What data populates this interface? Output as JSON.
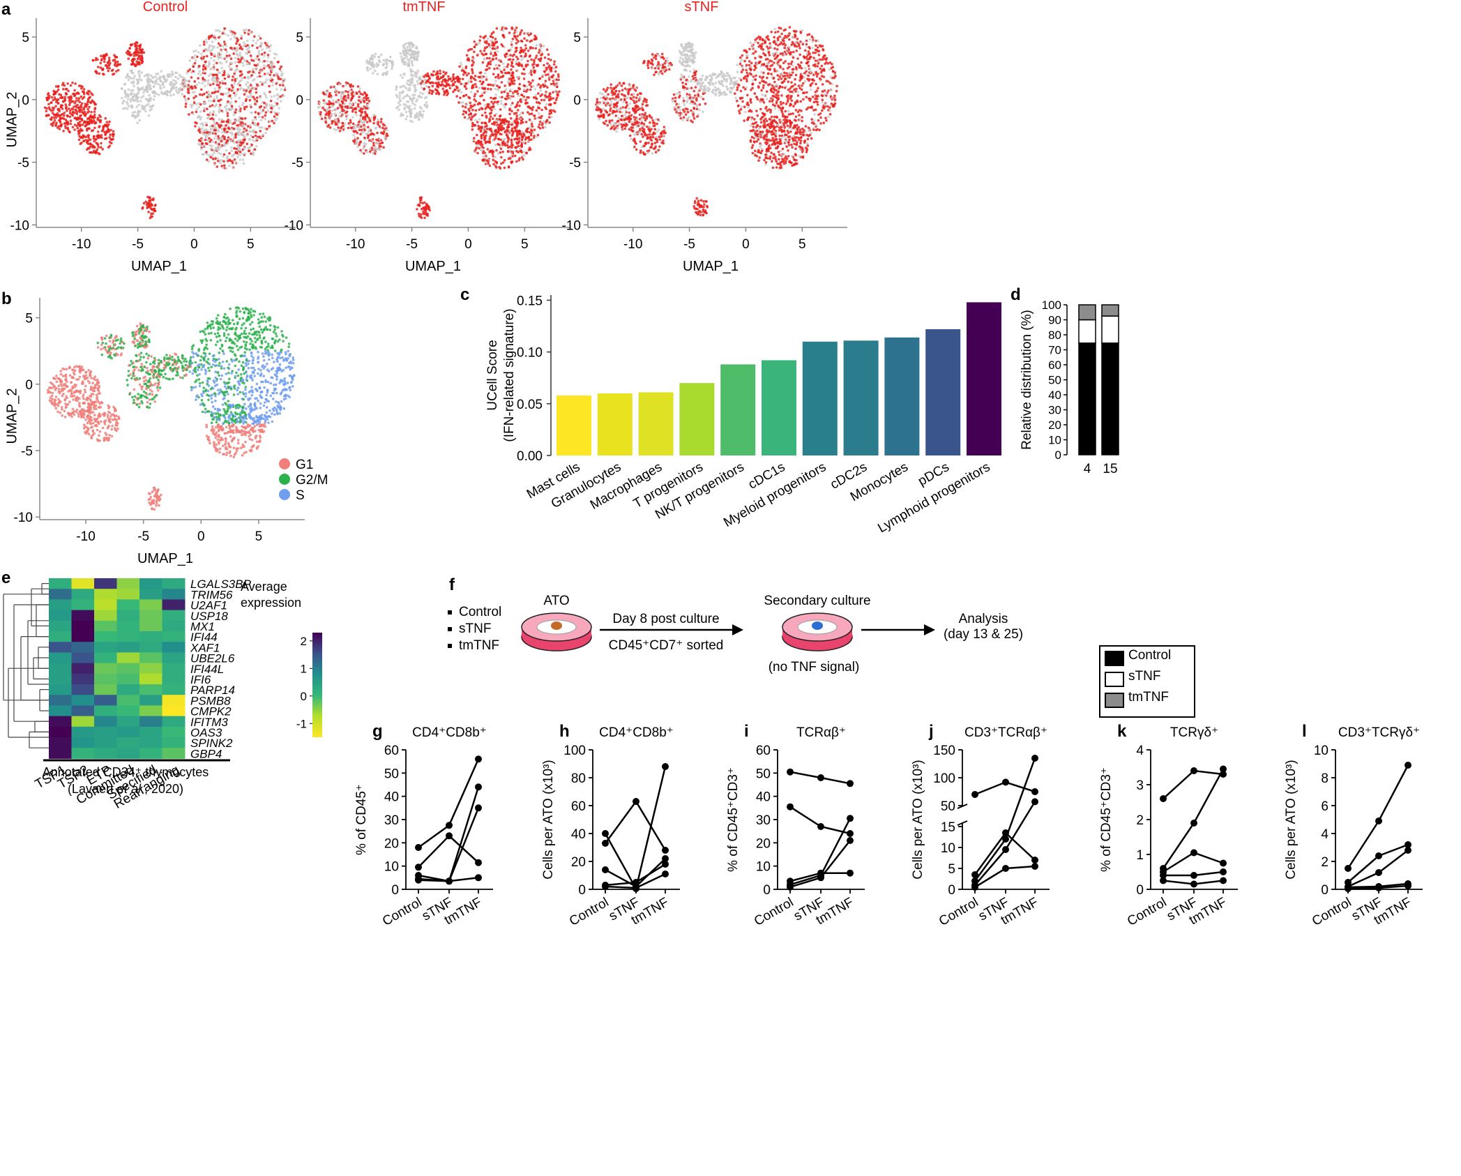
{
  "panels": {
    "a": {
      "label": "a",
      "plots": [
        {
          "title": "Control"
        },
        {
          "title": "tmTNF"
        },
        {
          "title": "sTNF"
        }
      ],
      "xlabel": "UMAP_1",
      "ylabel": "UMAP_2",
      "xticks": [
        "-10",
        "-5",
        "0",
        "5"
      ],
      "yticks": [
        "5",
        "0",
        "-5",
        "-10"
      ],
      "highlight_color": "#e8221f",
      "background_color": "#c8c8c8"
    },
    "b": {
      "label": "b",
      "xlabel": "UMAP_1",
      "ylabel": "UMAP_2",
      "xticks": [
        "-10",
        "-5",
        "0",
        "5"
      ],
      "yticks": [
        "5",
        "0",
        "-5",
        "-10"
      ],
      "legend": [
        {
          "name": "G1",
          "color": "#f07f7a"
        },
        {
          "name": "G2/M",
          "color": "#2bb24c"
        },
        {
          "name": "S",
          "color": "#6f9ef0"
        }
      ]
    },
    "c": {
      "label": "c",
      "ylabel_line1": "UCell Score",
      "ylabel_line2": "(IFN-related signature)",
      "yticks": [
        "0.00",
        "0.05",
        "0.10",
        "0.15"
      ]
    },
    "d": {
      "label": "d",
      "ylabel": "Relative distribution (%)",
      "yticks": [
        "0",
        "10",
        "20",
        "30",
        "40",
        "50",
        "60",
        "70",
        "80",
        "90",
        "100"
      ],
      "legend": [
        {
          "name": "Control",
          "color": "#000000"
        },
        {
          "name": "sTNF",
          "color": "#ffffff"
        },
        {
          "name": "tmTNF",
          "color": "#8c8c8c"
        }
      ]
    },
    "e": {
      "label": "e",
      "columns": [
        "TSP1",
        "TSP2",
        "ETP",
        "Committed",
        "Specified",
        "Rearranging"
      ],
      "genes": [
        "LGALS3BP",
        "TRIM56",
        "U2AF1",
        "USP18",
        "MX1",
        "IFI44",
        "XAF1",
        "UBE2L6",
        "IFI44L",
        "IFI6",
        "PARP14",
        "PSMB8",
        "CMPK2",
        "IFITM3",
        "OAS3",
        "SPINK2",
        "GBP4"
      ],
      "legend_title_1": "Average",
      "legend_title_2": "expression",
      "legend_ticks": [
        "2",
        "1",
        "0",
        "-1"
      ],
      "caption_1": "Annotated  CD34⁺ thymocytes",
      "caption_2a": "(Lavaert ",
      "caption_2b": "et al",
      "caption_2c": "., 2020)"
    },
    "f": {
      "label": "f",
      "conditions": [
        "Control",
        "sTNF",
        "tmTNF"
      ],
      "ato": "ATO",
      "arrow1_top": "Day 8 post culture",
      "arrow1_bottom": "CD45⁺CD7⁺ sorted",
      "secondary": "Secondary culture",
      "no_tnf": "(no TNF signal)",
      "analysis_1": "Analysis",
      "analysis_2": "(day 13 & 25)"
    },
    "lines": {
      "xcats": [
        "Control",
        "sTNF",
        "tmTNF"
      ]
    }
  },
  "chart_data": [
    {
      "id": "c",
      "type": "bar",
      "categories": [
        "Mast cells",
        "Granulocytes",
        "Macrophages",
        "T progenitors",
        "NK/T progenitors",
        "cDC1s",
        "Myeloid progenitors",
        "cDC2s",
        "Monocytes",
        "pDCs",
        "Lymphoid progenitors"
      ],
      "values": [
        0.058,
        0.06,
        0.061,
        0.07,
        0.088,
        0.092,
        0.11,
        0.111,
        0.114,
        0.122,
        0.148
      ],
      "colors": [
        "#fde725",
        "#e9e21f",
        "#dfe125",
        "#a9db2e",
        "#4fbc69",
        "#3ab47a",
        "#2a7f8d",
        "#2b7d8e",
        "#2d728e",
        "#39558c",
        "#440154"
      ],
      "ylabel": "UCell Score (IFN-related signature)",
      "ylim": [
        0,
        0.15
      ]
    },
    {
      "id": "d",
      "type": "bar",
      "stacked": true,
      "categories": [
        "4",
        "15"
      ],
      "series": [
        {
          "name": "Control",
          "values": [
            74.5,
            74.5
          ]
        },
        {
          "name": "sTNF",
          "values": [
            15.5,
            18
          ]
        },
        {
          "name": "tmTNF",
          "values": [
            10,
            7.5
          ]
        }
      ],
      "ylabel": "Relative distribution (%)",
      "ylim": [
        0,
        100
      ]
    },
    {
      "id": "e",
      "type": "heatmap",
      "columns": [
        "TSP1",
        "TSP2",
        "ETP",
        "Committed",
        "Specified",
        "Rearranging"
      ],
      "rows": [
        "LGALS3BP",
        "TRIM56",
        "U2AF1",
        "USP18",
        "MX1",
        "IFI44",
        "XAF1",
        "UBE2L6",
        "IFI44L",
        "IFI6",
        "PARP14",
        "PSMB8",
        "CMPK2",
        "IFITM3",
        "OAS3",
        "SPINK2",
        "GBP4"
      ],
      "values": [
        [
          0.2,
          -1.2,
          1.8,
          -0.5,
          0.6,
          0.3
        ],
        [
          1.2,
          0.3,
          -0.7,
          -0.6,
          0.5,
          0.9
        ],
        [
          0.5,
          0.1,
          -0.8,
          0.0,
          -0.4,
          2.0
        ],
        [
          0.6,
          2.2,
          -0.6,
          0.2,
          -0.3,
          0.2
        ],
        [
          0.4,
          2.3,
          -0.2,
          0.1,
          -0.3,
          0.3
        ],
        [
          0.2,
          2.3,
          0.0,
          0.1,
          0.2,
          0.1
        ],
        [
          1.5,
          1.3,
          0.4,
          0.5,
          0.3,
          0.8
        ],
        [
          0.6,
          1.5,
          0.1,
          -0.6,
          -0.2,
          0.4
        ],
        [
          0.5,
          2.0,
          -0.3,
          -0.2,
          -0.5,
          0.2
        ],
        [
          0.5,
          1.8,
          -0.2,
          -0.1,
          -0.7,
          0.2
        ],
        [
          0.6,
          1.6,
          -0.3,
          0.3,
          -0.1,
          0.1
        ],
        [
          1.2,
          0.8,
          1.4,
          -0.1,
          0.5,
          -1.4
        ],
        [
          0.8,
          1.4,
          0.2,
          0.0,
          -0.4,
          -1.6
        ],
        [
          2.2,
          -0.6,
          0.9,
          0.4,
          1.0,
          0.3
        ],
        [
          2.3,
          0.6,
          0.5,
          0.6,
          0.4,
          0.0
        ],
        [
          2.2,
          0.7,
          0.5,
          0.3,
          0.4,
          0.1
        ],
        [
          2.2,
          0.1,
          0.3,
          0.4,
          0.1,
          -0.2
        ]
      ],
      "vmin": -1.5,
      "vmax": 2.3
    },
    {
      "id": "g",
      "type": "line",
      "title": "CD4⁺CD8b⁺",
      "ylabel": "% of CD45⁺",
      "ylim": [
        0,
        60
      ],
      "yticks": [
        "0",
        "10",
        "20",
        "30",
        "40",
        "50",
        "60"
      ],
      "x": [
        "Control",
        "sTNF",
        "tmTNF"
      ],
      "series": [
        [
          18,
          27.5,
          56
        ],
        [
          9.5,
          23,
          11.5
        ],
        [
          6,
          3.5,
          44
        ],
        [
          4.5,
          3.5,
          35
        ],
        [
          4,
          3.5,
          5
        ]
      ]
    },
    {
      "id": "h",
      "type": "line",
      "title": "CD4⁺CD8b⁺",
      "ylabel": "Cells per ATO (x10³)",
      "ylim": [
        0,
        100
      ],
      "yticks": [
        "0",
        "20",
        "40",
        "60",
        "80",
        "100"
      ],
      "x": [
        "Control",
        "sTNF",
        "tmTNF"
      ],
      "series": [
        [
          40,
          0.5,
          88
        ],
        [
          33,
          63,
          28
        ],
        [
          14,
          2,
          22
        ],
        [
          3,
          5,
          18
        ],
        [
          2,
          1,
          11
        ]
      ]
    },
    {
      "id": "i",
      "type": "line",
      "title": "TCRαβ⁺",
      "ylabel": "% of CD45⁺CD3⁺",
      "ylim": [
        0,
        60
      ],
      "yticks": [
        "0",
        "10",
        "20",
        "30",
        "40",
        "50",
        "60"
      ],
      "x": [
        "Control",
        "sTNF",
        "tmTNF"
      ],
      "series": [
        [
          50.5,
          48,
          45.5
        ],
        [
          35.5,
          27,
          24
        ],
        [
          3.5,
          7,
          7
        ],
        [
          2,
          6,
          30.5
        ],
        [
          1,
          5,
          21
        ]
      ]
    },
    {
      "id": "j",
      "type": "line",
      "title": "CD3⁺TCRαβ⁺",
      "ylabel": "Cells per ATO (x10³)",
      "broken_axis": true,
      "ylim_lower": [
        0,
        15
      ],
      "ylim_upper": [
        50,
        150
      ],
      "yticks_lower": [
        "0",
        "5",
        "10",
        "15"
      ],
      "yticks_upper": [
        "50",
        "100",
        "150"
      ],
      "x": [
        "Control",
        "sTNF",
        "tmTNF"
      ],
      "series": [
        [
          70,
          92,
          75
        ],
        [
          3.5,
          13.5,
          7
        ],
        [
          2,
          12,
          135
        ],
        [
          1,
          9.5,
          57
        ],
        [
          0.5,
          5,
          5.5
        ]
      ]
    },
    {
      "id": "k",
      "type": "line",
      "title": "TCRγδ⁺",
      "ylabel": "% of CD45⁺CD3⁺",
      "ylim": [
        0,
        4
      ],
      "yticks": [
        "0",
        "1",
        "2",
        "3",
        "4"
      ],
      "x": [
        "Control",
        "sTNF",
        "tmTNF"
      ],
      "series": [
        [
          2.6,
          3.4,
          3.3
        ],
        [
          0.6,
          1.9,
          3.45
        ],
        [
          0.5,
          1.05,
          0.75
        ],
        [
          0.4,
          0.4,
          0.5
        ],
        [
          0.25,
          0.15,
          0.25
        ]
      ]
    },
    {
      "id": "l",
      "type": "line",
      "title": "CD3⁺TCRγδ⁺",
      "ylabel": "Cells per ATO (x10³)",
      "ylim": [
        0,
        10
      ],
      "yticks": [
        "0",
        "2",
        "4",
        "6",
        "8",
        "10"
      ],
      "x": [
        "Control",
        "sTNF",
        "tmTNF"
      ],
      "series": [
        [
          1.5,
          4.9,
          8.9
        ],
        [
          0.5,
          2.4,
          3.2
        ],
        [
          0.2,
          1.2,
          2.8
        ],
        [
          0.15,
          0.2,
          0.4
        ],
        [
          0.05,
          0.1,
          0.25
        ]
      ]
    }
  ]
}
